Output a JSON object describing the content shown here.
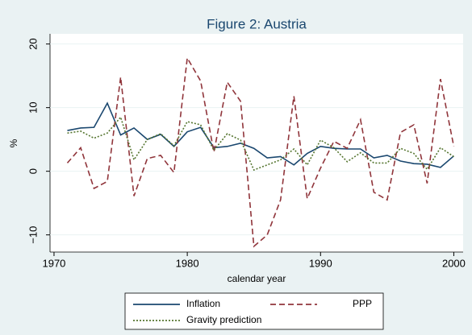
{
  "chart_data": {
    "type": "line",
    "title": "Figure 2: Austria",
    "x_label": "calendar year",
    "y_label": "%",
    "x": [
      1971,
      1972,
      1973,
      1974,
      1975,
      1976,
      1977,
      1978,
      1979,
      1980,
      1981,
      1982,
      1983,
      1984,
      1985,
      1986,
      1987,
      1988,
      1989,
      1990,
      1991,
      1992,
      1993,
      1994,
      1995,
      1996,
      1997,
      1998,
      1999,
      2000
    ],
    "series": [
      {
        "name": "Inflation",
        "color": "#1a476f",
        "style": "solid",
        "values": [
          6.4,
          6.8,
          6.9,
          10.7,
          5.7,
          6.8,
          5.0,
          5.8,
          3.9,
          6.2,
          6.9,
          3.7,
          3.9,
          4.4,
          3.6,
          2.1,
          2.3,
          1.0,
          2.8,
          3.9,
          3.6,
          3.5,
          3.5,
          2.1,
          2.5,
          1.6,
          1.2,
          1.1,
          0.6,
          2.4
        ]
      },
      {
        "name": "PPP",
        "color": "#90353b",
        "style": "dashed",
        "values": [
          1.3,
          3.7,
          -2.7,
          -1.6,
          14.8,
          -3.9,
          2.0,
          2.5,
          -0.2,
          17.8,
          14.2,
          3.0,
          14.0,
          11.0,
          -11.8,
          -10.0,
          -4.5,
          11.8,
          -4.3,
          0.5,
          4.7,
          3.6,
          8.1,
          -3.3,
          -4.5,
          6.1,
          7.3,
          -1.9,
          14.5,
          3.9
        ]
      },
      {
        "name": "Gravity prediction",
        "color": "#55752f",
        "style": "dotted",
        "values": [
          6.0,
          6.3,
          5.2,
          6.0,
          8.5,
          1.8,
          5.0,
          5.9,
          4.0,
          7.8,
          7.3,
          3.3,
          5.9,
          4.9,
          0.2,
          1.0,
          1.8,
          3.5,
          1.0,
          4.9,
          3.7,
          1.5,
          2.9,
          1.3,
          1.3,
          3.6,
          2.8,
          0.3,
          3.7,
          2.3
        ]
      }
    ],
    "xlim": [
      1969.7,
      2000.7
    ],
    "xticks": [
      1970,
      1980,
      1990,
      2000
    ],
    "ylim": [
      -12.7,
      21.6
    ],
    "yticks": [
      {
        "value": -10,
        "label": "−10"
      },
      0,
      10,
      20
    ],
    "grid": true
  }
}
